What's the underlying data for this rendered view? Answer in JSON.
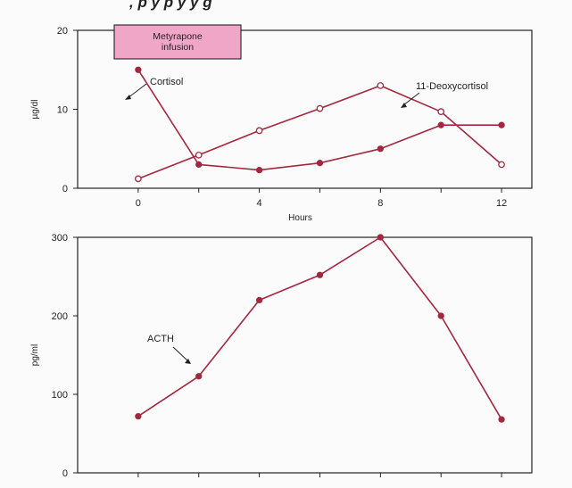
{
  "header_fragment": ", p     y        p           y        y              g",
  "chart_data": [
    {
      "type": "line",
      "xlabel": "Hours",
      "ylabel": "µg/dl",
      "xlim": [
        -2,
        13
      ],
      "ylim": [
        0,
        20
      ],
      "x_ticks": [
        0,
        4,
        8,
        12
      ],
      "y_ticks": [
        0,
        10,
        20
      ],
      "banner": {
        "line1": "Metyrapone",
        "line2": "infusion"
      },
      "color": "#a3283f",
      "series": [
        {
          "name": "Cortisol",
          "marker": "filled",
          "x": [
            0,
            2,
            4,
            6,
            8,
            10,
            12
          ],
          "y": [
            15,
            3,
            2.3,
            3.2,
            5,
            8,
            8
          ]
        },
        {
          "name": "11-Deoxycortisol",
          "marker": "open",
          "x": [
            0,
            2,
            4,
            6,
            8,
            10,
            12
          ],
          "y": [
            1.2,
            4.2,
            7.3,
            10.1,
            13,
            9.7,
            3
          ]
        }
      ]
    },
    {
      "type": "line",
      "xlabel": "",
      "ylabel": "pg/ml",
      "xlim": [
        -2,
        13
      ],
      "ylim": [
        0,
        300
      ],
      "y_ticks": [
        0,
        100,
        200,
        300
      ],
      "color": "#a3283f",
      "series": [
        {
          "name": "ACTH",
          "marker": "filled",
          "x": [
            0,
            2,
            4,
            6,
            8,
            10,
            12
          ],
          "y": [
            72,
            123,
            220,
            252,
            300,
            200,
            68
          ]
        }
      ]
    }
  ]
}
